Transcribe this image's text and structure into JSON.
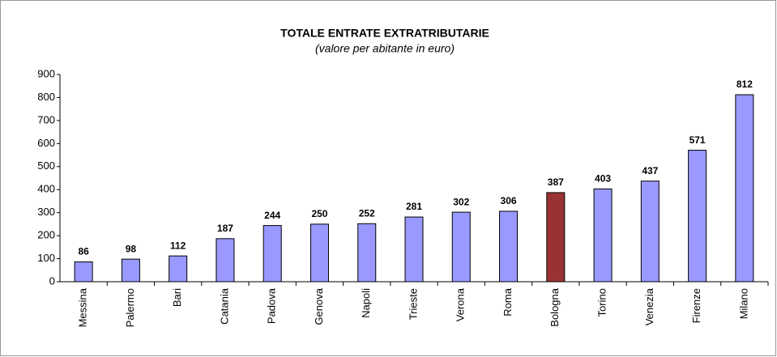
{
  "chart_data": {
    "type": "bar",
    "title": "TOTALE ENTRATE EXTRATRIBUTARIE",
    "subtitle": "(valore per abitante in euro)",
    "categories": [
      "Messina",
      "Palermo",
      "Bari",
      "Catania",
      "Padova",
      "Genova",
      "Napoli",
      "Trieste",
      "Verona",
      "Roma",
      "Bologna",
      "Torino",
      "Venezia",
      "Firenze",
      "Milano"
    ],
    "values": [
      86,
      98,
      112,
      187,
      244,
      250,
      252,
      281,
      302,
      306,
      387,
      403,
      437,
      571,
      812
    ],
    "colors": [
      "#9999ff",
      "#9999ff",
      "#9999ff",
      "#9999ff",
      "#9999ff",
      "#9999ff",
      "#9999ff",
      "#9999ff",
      "#9999ff",
      "#9999ff",
      "#993333",
      "#9999ff",
      "#9999ff",
      "#9999ff",
      "#9999ff"
    ],
    "ylim": [
      0,
      900
    ],
    "yticks": [
      0,
      100,
      200,
      300,
      400,
      500,
      600,
      700,
      800,
      900
    ],
    "grid": false
  }
}
